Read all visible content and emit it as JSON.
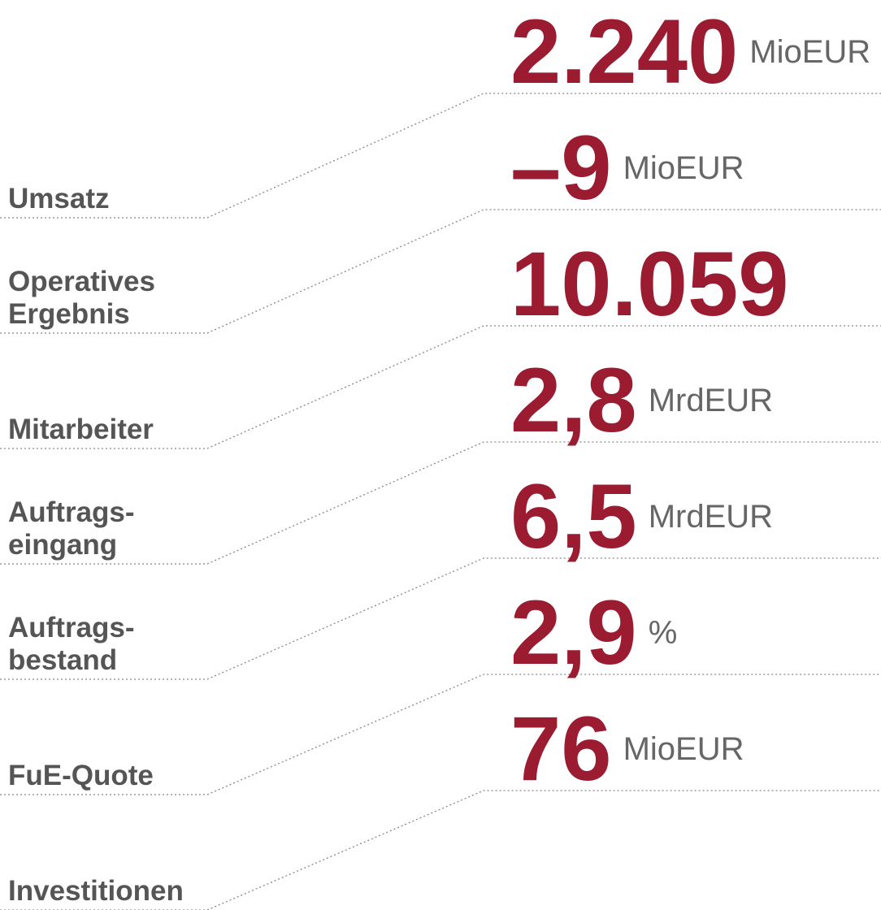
{
  "items": [
    {
      "label": [
        "Umsatz"
      ],
      "value": "2.240",
      "unit": "MioEUR"
    },
    {
      "label": [
        "Operatives",
        "Ergebnis"
      ],
      "value": "–9",
      "unit": "MioEUR"
    },
    {
      "label": [
        "Mitarbeiter"
      ],
      "value": "10.059"
    },
    {
      "label": [
        "Auftrags-",
        "eingang"
      ],
      "value": "2,8",
      "unit": "MrdEUR"
    },
    {
      "label": [
        "Auftrags-",
        "bestand"
      ],
      "value": "6,5",
      "unit": "MrdEUR"
    },
    {
      "label": [
        "FuE-Quote"
      ],
      "value": "2,9",
      "unit": "%"
    },
    {
      "label": [
        "Investitionen"
      ],
      "value": "76",
      "unit": "MioEUR"
    }
  ]
}
